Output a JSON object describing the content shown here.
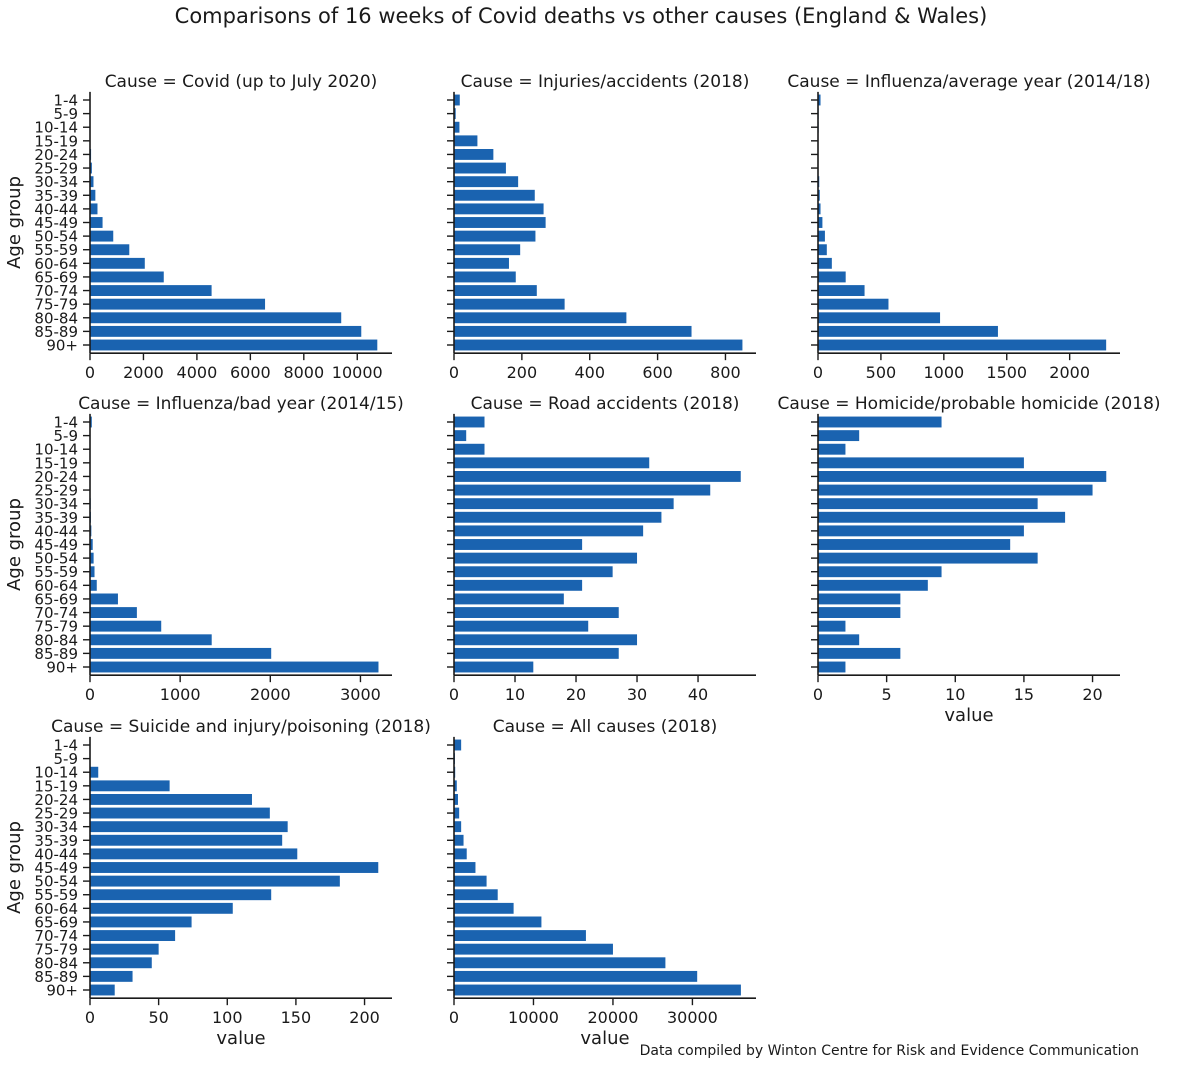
{
  "title": "Comparisons of 16 weeks of Covid deaths vs other causes (England & Wales)",
  "footnote": "Data compiled by Winton Centre for Risk and Evidence Communication",
  "colors": {
    "bar": "#1a63b0",
    "axis": "#1a1a1a",
    "text": "#1a1a1a"
  },
  "chart_data": [
    {
      "type": "bar",
      "orientation": "horizontal",
      "title": "Cause = Covid (up to July 2020)",
      "ylabel": "Age group",
      "xlabel": "",
      "categories": [
        "1-4",
        "5-9",
        "10-14",
        "15-19",
        "20-24",
        "25-29",
        "30-34",
        "35-39",
        "40-44",
        "45-49",
        "50-54",
        "55-59",
        "60-64",
        "65-69",
        "70-74",
        "75-79",
        "80-84",
        "85-89",
        "90+"
      ],
      "values": [
        5,
        3,
        4,
        15,
        40,
        70,
        130,
        200,
        280,
        470,
        870,
        1470,
        2050,
        2760,
        4550,
        6550,
        9400,
        10150,
        10750
      ],
      "xlim": [
        0,
        11300
      ],
      "xticks": [
        0,
        2000,
        4000,
        6000,
        8000,
        10000
      ]
    },
    {
      "type": "bar",
      "orientation": "horizontal",
      "title": "Cause = Injuries/accidents (2018)",
      "ylabel": "",
      "xlabel": "",
      "categories": [
        "1-4",
        "5-9",
        "10-14",
        "15-19",
        "20-24",
        "25-29",
        "30-34",
        "35-39",
        "40-44",
        "45-49",
        "50-54",
        "55-59",
        "60-64",
        "65-69",
        "70-74",
        "75-79",
        "80-84",
        "85-89",
        "90+"
      ],
      "values": [
        17,
        5,
        16,
        69,
        116,
        153,
        189,
        238,
        264,
        270,
        240,
        195,
        162,
        182,
        244,
        326,
        508,
        700,
        850
      ],
      "xlim": [
        0,
        890
      ],
      "xticks": [
        0,
        200,
        400,
        600,
        800
      ]
    },
    {
      "type": "bar",
      "orientation": "horizontal",
      "title": "Cause = Influenza/average year (2014/18)",
      "ylabel": "",
      "xlabel": "",
      "categories": [
        "1-4",
        "5-9",
        "10-14",
        "15-19",
        "20-24",
        "25-29",
        "30-34",
        "35-39",
        "40-44",
        "45-49",
        "50-54",
        "55-59",
        "60-64",
        "65-69",
        "70-74",
        "75-79",
        "80-84",
        "85-89",
        "90+"
      ],
      "values": [
        20,
        5,
        5,
        3,
        3,
        4,
        10,
        14,
        20,
        35,
        55,
        70,
        110,
        220,
        370,
        560,
        970,
        1430,
        2290
      ],
      "xlim": [
        0,
        2400
      ],
      "xticks": [
        0,
        500,
        1000,
        1500,
        2000
      ]
    },
    {
      "type": "bar",
      "orientation": "horizontal",
      "title": "Cause = Influenza/bad year (2014/15)",
      "ylabel": "Age group",
      "xlabel": "",
      "categories": [
        "1-4",
        "5-9",
        "10-14",
        "15-19",
        "20-24",
        "25-29",
        "30-34",
        "35-39",
        "40-44",
        "45-49",
        "50-54",
        "55-59",
        "60-64",
        "65-69",
        "70-74",
        "75-79",
        "80-84",
        "85-89",
        "90+"
      ],
      "values": [
        20,
        3,
        2,
        2,
        2,
        4,
        8,
        10,
        15,
        30,
        40,
        50,
        75,
        310,
        520,
        790,
        1350,
        2010,
        3200
      ],
      "xlim": [
        0,
        3350
      ],
      "xticks": [
        0,
        1000,
        2000,
        3000
      ]
    },
    {
      "type": "bar",
      "orientation": "horizontal",
      "title": "Cause = Road accidents (2018)",
      "ylabel": "",
      "xlabel": "",
      "categories": [
        "1-4",
        "5-9",
        "10-14",
        "15-19",
        "20-24",
        "25-29",
        "30-34",
        "35-39",
        "40-44",
        "45-49",
        "50-54",
        "55-59",
        "60-64",
        "65-69",
        "70-74",
        "75-79",
        "80-84",
        "85-89",
        "90+"
      ],
      "values": [
        5,
        2,
        5,
        32,
        47,
        42,
        36,
        34,
        31,
        21,
        30,
        26,
        21,
        18,
        27,
        22,
        30,
        27,
        13
      ],
      "xlim": [
        0,
        49.5
      ],
      "xticks": [
        0,
        10,
        20,
        30,
        40
      ]
    },
    {
      "type": "bar",
      "orientation": "horizontal",
      "title": "Cause = Homicide/probable homicide (2018)",
      "ylabel": "",
      "xlabel": "value",
      "categories": [
        "1-4",
        "5-9",
        "10-14",
        "15-19",
        "20-24",
        "25-29",
        "30-34",
        "35-39",
        "40-44",
        "45-49",
        "50-54",
        "55-59",
        "60-64",
        "65-69",
        "70-74",
        "75-79",
        "80-84",
        "85-89",
        "90+"
      ],
      "values": [
        9,
        3,
        2,
        15,
        21,
        20,
        16,
        18,
        15,
        14,
        16,
        9,
        8,
        6,
        6,
        2,
        3,
        6,
        2
      ],
      "xlim": [
        0,
        22
      ],
      "xticks": [
        0,
        5,
        10,
        15,
        20
      ]
    },
    {
      "type": "bar",
      "orientation": "horizontal",
      "title": "Cause = Suicide and injury/poisoning (2018)",
      "ylabel": "Age group",
      "xlabel": "value",
      "categories": [
        "1-4",
        "5-9",
        "10-14",
        "15-19",
        "20-24",
        "25-29",
        "30-34",
        "35-39",
        "40-44",
        "45-49",
        "50-54",
        "55-59",
        "60-64",
        "65-69",
        "70-74",
        "75-79",
        "80-84",
        "85-89",
        "90+"
      ],
      "values": [
        0,
        0,
        6,
        58,
        118,
        131,
        144,
        140,
        151,
        210,
        182,
        132,
        104,
        74,
        62,
        50,
        45,
        31,
        18
      ],
      "xlim": [
        0,
        220
      ],
      "xticks": [
        0,
        50,
        100,
        150,
        200
      ]
    },
    {
      "type": "bar",
      "orientation": "horizontal",
      "title": "Cause = All causes (2018)",
      "ylabel": "",
      "xlabel": "value",
      "categories": [
        "1-4",
        "5-9",
        "10-14",
        "15-19",
        "20-24",
        "25-29",
        "30-34",
        "35-39",
        "40-44",
        "45-49",
        "50-54",
        "55-59",
        "60-64",
        "65-69",
        "70-74",
        "75-79",
        "80-84",
        "85-89",
        "90+"
      ],
      "values": [
        900,
        120,
        150,
        350,
        500,
        650,
        900,
        1200,
        1600,
        2700,
        4100,
        5500,
        7500,
        11000,
        16600,
        20000,
        26600,
        30600,
        36100
      ],
      "xlim": [
        0,
        38000
      ],
      "xticks": [
        0,
        10000,
        20000,
        30000
      ]
    }
  ]
}
